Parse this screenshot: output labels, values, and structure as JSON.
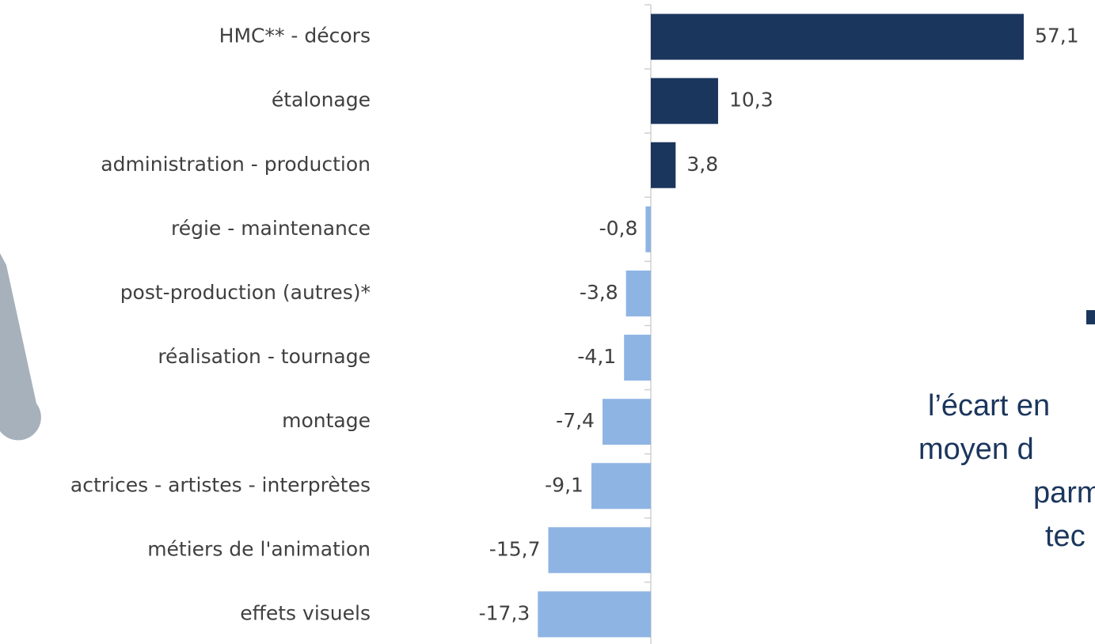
{
  "chart_data": {
    "type": "barh",
    "categories": [
      "HMC** - décors",
      "étalonage",
      "administration - production",
      "régie - maintenance",
      "post-production (autres)*",
      "réalisation - tournage",
      "montage",
      "actrices - artistes - interprètes",
      "métiers de l'animation",
      "effets visuels"
    ],
    "values": [
      57.1,
      10.3,
      3.8,
      -0.8,
      -3.8,
      -4.1,
      -7.4,
      -9.1,
      -15.7,
      -17.3
    ],
    "value_labels": [
      "57,1",
      "10,3",
      "3,8",
      "-0,8",
      "-3,8",
      "-4,1",
      "-7,4",
      "-9,1",
      "-15,7",
      "-17,3"
    ],
    "color_positive": "#1b365d",
    "color_negative": "#8eb4e3",
    "annotations": [
      "l’écart en",
      "moyen d",
      "parm",
      "tec"
    ]
  }
}
